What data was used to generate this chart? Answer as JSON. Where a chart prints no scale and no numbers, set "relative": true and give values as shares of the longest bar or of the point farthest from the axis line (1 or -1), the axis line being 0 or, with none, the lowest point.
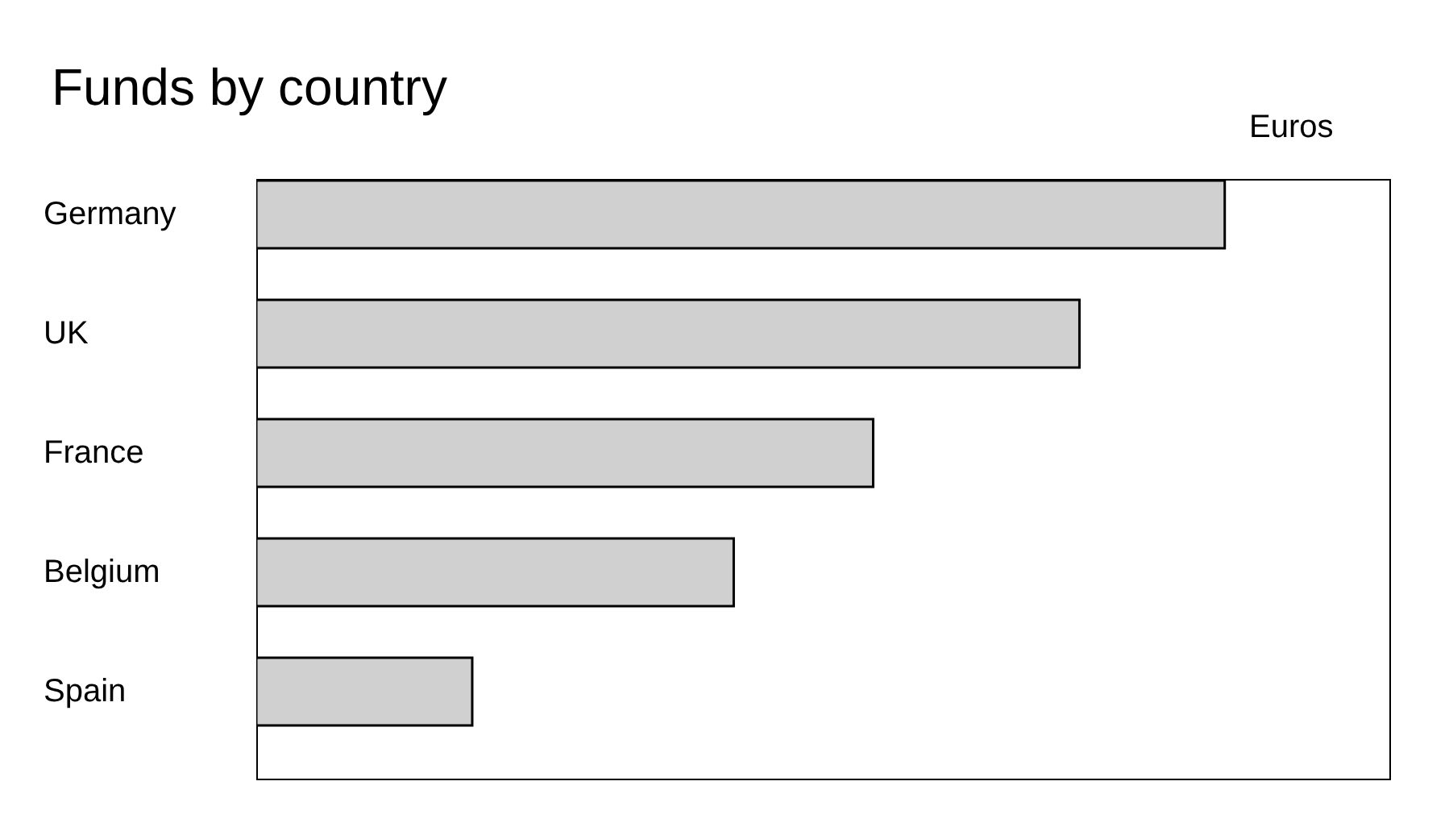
{
  "chart_data": {
    "type": "bar",
    "orientation": "horizontal",
    "relative": true,
    "title": "Funds by country",
    "xlabel": "Euros",
    "categories": [
      "Germany",
      "UK",
      "France",
      "Belgium",
      "Spain"
    ],
    "values": [
      1,
      0.85,
      0.637,
      0.493,
      0.223
    ],
    "color": "#d0d0d0",
    "grid": false,
    "legend": false
  }
}
